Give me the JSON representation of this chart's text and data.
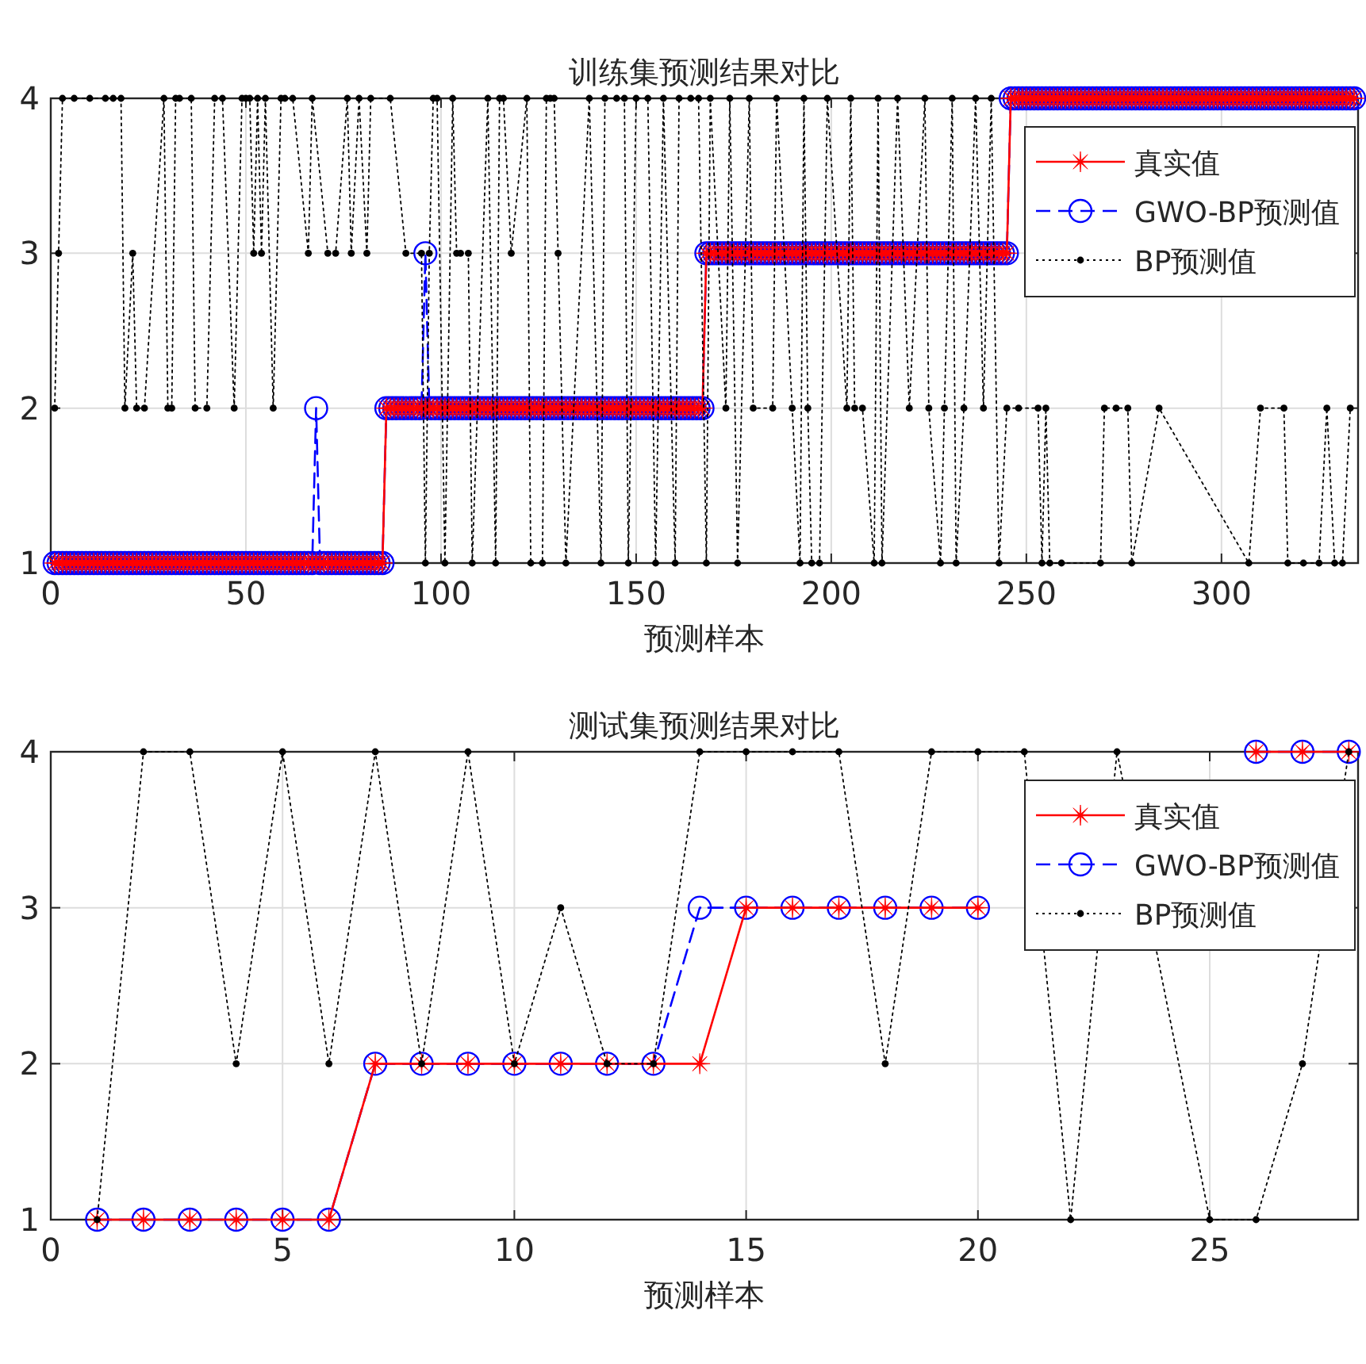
{
  "chart_data": [
    {
      "type": "line",
      "title": "训练集预测结果对比",
      "xlabel": "预测样本",
      "xlim": [
        0,
        335
      ],
      "xticks": [
        0,
        50,
        100,
        150,
        200,
        250,
        300
      ],
      "ylim": [
        1,
        4
      ],
      "yticks": [
        1,
        2,
        3,
        4
      ],
      "grid": true,
      "legend": "top right",
      "x": [
        1,
        2,
        3,
        4,
        5,
        6,
        7,
        8,
        9,
        10,
        11,
        12,
        13,
        14,
        15,
        16,
        17,
        18,
        19,
        20,
        21,
        22,
        23,
        24,
        25,
        26,
        27,
        28,
        29,
        30,
        31,
        32,
        33,
        34,
        35,
        36,
        37,
        38,
        39,
        40,
        41,
        42,
        43,
        44,
        45,
        46,
        47,
        48,
        49,
        50,
        51,
        52,
        53,
        54,
        55,
        56,
        57,
        58,
        59,
        60,
        61,
        62,
        63,
        64,
        65,
        66,
        67,
        68,
        69,
        70,
        71,
        72,
        73,
        74,
        75,
        76,
        77,
        78,
        79,
        80,
        81,
        82,
        83,
        84,
        85,
        86,
        87,
        88,
        89,
        90,
        91,
        92,
        93,
        94,
        95,
        96,
        97,
        98,
        99,
        100,
        101,
        102,
        103,
        104,
        105,
        106,
        107,
        108,
        109,
        110,
        111,
        112,
        113,
        114,
        115,
        116,
        117,
        118,
        119,
        120,
        121,
        122,
        123,
        124,
        125,
        126,
        127,
        128,
        129,
        130,
        131,
        132,
        133,
        134,
        135,
        136,
        137,
        138,
        139,
        140,
        141,
        142,
        143,
        144,
        145,
        146,
        147,
        148,
        149,
        150,
        151,
        152,
        153,
        154,
        155,
        156,
        157,
        158,
        159,
        160,
        161,
        162,
        163,
        164,
        165,
        166,
        167,
        168,
        169,
        170,
        171,
        172,
        173,
        174,
        175,
        176,
        177,
        178,
        179,
        180,
        181,
        182,
        183,
        184,
        185,
        186,
        187,
        188,
        189,
        190,
        191,
        192,
        193,
        194,
        195,
        196,
        197,
        198,
        199,
        200,
        201,
        202,
        203,
        204,
        205,
        206,
        207,
        208,
        209,
        210,
        211,
        212,
        213,
        214,
        215,
        216,
        217,
        218,
        219,
        220,
        221,
        222,
        223,
        224,
        225,
        226,
        227,
        228,
        229,
        230,
        231,
        232,
        233,
        234,
        235,
        236,
        237,
        238,
        239,
        240,
        241,
        242,
        243,
        244,
        245,
        246,
        247,
        248,
        249,
        250,
        251,
        252,
        253,
        254,
        255,
        256,
        257,
        258,
        259,
        260,
        261,
        262,
        263,
        264,
        265,
        266,
        267,
        268,
        269,
        270,
        271,
        272,
        273,
        274,
        275,
        276,
        277,
        278,
        279,
        280,
        281,
        282,
        283,
        284,
        285,
        286,
        287,
        288,
        289,
        290,
        291,
        292,
        293,
        294,
        295,
        296,
        297,
        298,
        299,
        300,
        301,
        302,
        303,
        304,
        305,
        306,
        307,
        308,
        309,
        310,
        311,
        312,
        313,
        314,
        315,
        316,
        317,
        318,
        319,
        320,
        321,
        322,
        323,
        324,
        325,
        326,
        327,
        328,
        329,
        330,
        331,
        332,
        333,
        334
      ],
      "series": [
        {
          "name": "真实值",
          "color": "#ff0000",
          "marker": "star",
          "line_style": "solid",
          "values": [
            1,
            1,
            1,
            1,
            1,
            1,
            1,
            1,
            1,
            1,
            1,
            1,
            1,
            1,
            1,
            1,
            1,
            1,
            1,
            1,
            1,
            1,
            1,
            1,
            1,
            1,
            1,
            1,
            1,
            1,
            1,
            1,
            1,
            1,
            1,
            1,
            1,
            1,
            1,
            1,
            1,
            1,
            1,
            1,
            1,
            1,
            1,
            1,
            1,
            1,
            1,
            1,
            1,
            1,
            1,
            1,
            1,
            1,
            1,
            1,
            1,
            1,
            1,
            1,
            1,
            1,
            1,
            1,
            1,
            1,
            1,
            1,
            1,
            1,
            1,
            1,
            1,
            1,
            1,
            1,
            1,
            1,
            1,
            1,
            1,
            2,
            2,
            2,
            2,
            2,
            2,
            2,
            2,
            2,
            2,
            2,
            2,
            2,
            2,
            2,
            2,
            2,
            2,
            2,
            2,
            2,
            2,
            2,
            2,
            2,
            2,
            2,
            2,
            2,
            2,
            2,
            2,
            2,
            2,
            2,
            2,
            2,
            2,
            2,
            2,
            2,
            2,
            2,
            2,
            2,
            2,
            2,
            2,
            2,
            2,
            2,
            2,
            2,
            2,
            2,
            2,
            2,
            2,
            2,
            2,
            2,
            2,
            2,
            2,
            2,
            2,
            2,
            2,
            2,
            2,
            2,
            2,
            2,
            2,
            2,
            2,
            2,
            2,
            2,
            2,
            2,
            2,
            3,
            3,
            3,
            3,
            3,
            3,
            3,
            3,
            3,
            3,
            3,
            3,
            3,
            3,
            3,
            3,
            3,
            3,
            3,
            3,
            3,
            3,
            3,
            3,
            3,
            3,
            3,
            3,
            3,
            3,
            3,
            3,
            3,
            3,
            3,
            3,
            3,
            3,
            3,
            3,
            3,
            3,
            3,
            3,
            3,
            3,
            3,
            3,
            3,
            3,
            3,
            3,
            3,
            3,
            3,
            3,
            3,
            3,
            3,
            3,
            3,
            3,
            3,
            3,
            3,
            3,
            3,
            3,
            3,
            3,
            3,
            3,
            3,
            3,
            3,
            3,
            3,
            3,
            4,
            4,
            4,
            4,
            4,
            4,
            4,
            4,
            4,
            4,
            4,
            4,
            4,
            4,
            4,
            4,
            4,
            4,
            4,
            4,
            4,
            4,
            4,
            4,
            4,
            4,
            4,
            4,
            4,
            4,
            4,
            4,
            4,
            4,
            4,
            4,
            4,
            4,
            4,
            4,
            4,
            4,
            4,
            4,
            4,
            4,
            4,
            4,
            4,
            4,
            4,
            4,
            4,
            4,
            4,
            4,
            4,
            4,
            4,
            4,
            4,
            4,
            4,
            4,
            4,
            4,
            4,
            4,
            4,
            4,
            4,
            4,
            4,
            4,
            4,
            4,
            4,
            4,
            4,
            4,
            4,
            4,
            4,
            4,
            4,
            4,
            4,
            4,
            4
          ]
        },
        {
          "name": "GWO-BP预测值",
          "color": "#0000ff",
          "marker": "circle",
          "line_style": "dashed",
          "values": [
            1,
            1,
            1,
            1,
            1,
            1,
            1,
            1,
            1,
            1,
            1,
            1,
            1,
            1,
            1,
            1,
            1,
            1,
            1,
            1,
            1,
            1,
            1,
            1,
            1,
            1,
            1,
            1,
            1,
            1,
            1,
            1,
            1,
            1,
            1,
            1,
            1,
            1,
            1,
            1,
            1,
            1,
            1,
            1,
            1,
            1,
            1,
            1,
            1,
            1,
            1,
            1,
            1,
            1,
            1,
            1,
            1,
            1,
            1,
            1,
            1,
            1,
            1,
            1,
            1,
            1,
            1,
            2,
            1,
            1,
            1,
            1,
            1,
            1,
            1,
            1,
            1,
            1,
            1,
            1,
            1,
            1,
            1,
            1,
            1,
            2,
            2,
            2,
            2,
            2,
            2,
            2,
            2,
            2,
            2,
            3,
            2,
            2,
            2,
            2,
            2,
            2,
            2,
            2,
            2,
            2,
            2,
            2,
            2,
            2,
            2,
            2,
            2,
            2,
            2,
            2,
            2,
            2,
            2,
            2,
            2,
            2,
            2,
            2,
            2,
            2,
            2,
            2,
            2,
            2,
            2,
            2,
            2,
            2,
            2,
            2,
            2,
            2,
            2,
            2,
            2,
            2,
            2,
            2,
            2,
            2,
            2,
            2,
            2,
            2,
            2,
            2,
            2,
            2,
            2,
            2,
            2,
            2,
            2,
            2,
            2,
            2,
            2,
            2,
            2,
            2,
            2,
            3,
            3,
            3,
            3,
            3,
            3,
            3,
            3,
            3,
            3,
            3,
            3,
            3,
            3,
            3,
            3,
            3,
            3,
            3,
            3,
            3,
            3,
            3,
            3,
            3,
            3,
            3,
            3,
            3,
            3,
            3,
            3,
            3,
            3,
            3,
            3,
            3,
            3,
            3,
            3,
            3,
            3,
            3,
            3,
            3,
            3,
            3,
            3,
            3,
            3,
            3,
            3,
            3,
            3,
            3,
            3,
            3,
            3,
            3,
            3,
            3,
            3,
            3,
            3,
            3,
            3,
            3,
            3,
            3,
            3,
            3,
            3,
            3,
            3,
            3,
            3,
            3,
            3,
            4,
            4,
            4,
            4,
            4,
            4,
            4,
            4,
            4,
            4,
            4,
            4,
            4,
            4,
            4,
            4,
            4,
            4,
            4,
            4,
            4,
            4,
            4,
            4,
            4,
            4,
            4,
            4,
            4,
            4,
            4,
            4,
            4,
            4,
            4,
            4,
            4,
            4,
            4,
            4,
            4,
            4,
            4,
            4,
            4,
            4,
            4,
            4,
            4,
            4,
            4,
            4,
            4,
            4,
            4,
            4,
            4,
            4,
            4,
            4,
            4,
            4,
            4,
            4,
            4,
            4,
            4,
            4,
            4,
            4,
            4,
            4,
            4,
            4,
            4,
            4,
            4,
            4,
            4,
            4,
            4,
            4,
            4,
            4,
            4,
            4,
            4,
            4,
            4
          ]
        },
        {
          "name": "BP预测值",
          "color": "#000000",
          "marker": "circle",
          "line_style": "dotted",
          "x": [
            1,
            2,
            3,
            6,
            10,
            14,
            16,
            18,
            19,
            21,
            22,
            24,
            29,
            30,
            31,
            32,
            33,
            36,
            37,
            40,
            42,
            44,
            47,
            49,
            50,
            51,
            52,
            53,
            54,
            55,
            57,
            59,
            60,
            62,
            66,
            67,
            71,
            73,
            76,
            77,
            79,
            81,
            82,
            87,
            91,
            95,
            96,
            97,
            98,
            99,
            101,
            103,
            104,
            105,
            107,
            108,
            112,
            114,
            115,
            116,
            118,
            122,
            123,
            126,
            127,
            128,
            129,
            130,
            132,
            138,
            141,
            142,
            145,
            147,
            148,
            150,
            153,
            155,
            157,
            160,
            161,
            164,
            166,
            168,
            169,
            173,
            174,
            176,
            179,
            180,
            185,
            186,
            190,
            192,
            193,
            194,
            195,
            197,
            199,
            204,
            205,
            206,
            208,
            211,
            212,
            213,
            217,
            220,
            224,
            225,
            228,
            229,
            231,
            232,
            234,
            237,
            239,
            241,
            243,
            245,
            248,
            253,
            254,
            255,
            256,
            259,
            269,
            270,
            273,
            276,
            277,
            284,
            307,
            310,
            316,
            317,
            321,
            325,
            327,
            329,
            331,
            333
          ],
          "values": [
            2,
            3,
            4,
            4,
            4,
            4,
            4,
            4,
            2,
            3,
            2,
            2,
            4,
            2,
            2,
            4,
            4,
            4,
            2,
            2,
            4,
            4,
            2,
            4,
            4,
            4,
            3,
            4,
            3,
            4,
            2,
            4,
            4,
            4,
            3,
            4,
            3,
            3,
            4,
            3,
            4,
            3,
            4,
            4,
            3,
            3,
            1,
            3,
            4,
            4,
            1,
            4,
            3,
            3,
            3,
            1,
            4,
            1,
            4,
            4,
            3,
            4,
            1,
            1,
            4,
            4,
            4,
            3,
            1,
            4,
            1,
            4,
            4,
            4,
            1,
            4,
            4,
            1,
            4,
            1,
            4,
            4,
            4,
            1,
            4,
            2,
            4,
            1,
            4,
            2,
            2,
            4,
            2,
            1,
            4,
            2,
            1,
            1,
            4,
            2,
            4,
            2,
            2,
            1,
            4,
            1,
            4,
            2,
            4,
            2,
            1,
            2,
            4,
            1,
            2,
            4,
            2,
            4,
            1,
            2,
            2,
            2,
            1,
            2,
            1,
            1,
            1,
            2,
            2,
            2,
            1,
            2,
            1,
            2,
            2,
            1,
            1,
            1,
            2,
            1,
            1,
            2
          ]
        }
      ]
    },
    {
      "type": "line",
      "title": "测试集预测结果对比",
      "xlabel": "预测样本",
      "xlim": [
        0,
        28.2
      ],
      "xticks": [
        0,
        5,
        10,
        15,
        20,
        25
      ],
      "ylim": [
        1,
        4
      ],
      "yticks": [
        1,
        2,
        3,
        4
      ],
      "grid": true,
      "legend": "top right",
      "x": [
        1,
        2,
        3,
        4,
        5,
        6,
        7,
        8,
        9,
        10,
        11,
        12,
        13,
        14,
        15,
        16,
        17,
        18,
        19,
        20,
        21,
        22,
        23,
        25,
        26,
        27,
        28
      ],
      "series": [
        {
          "name": "真实值",
          "color": "#ff0000",
          "marker": "star",
          "line_style": "solid",
          "values": [
            1,
            1,
            1,
            1,
            1,
            1,
            2,
            2,
            2,
            2,
            2,
            2,
            2,
            2,
            3,
            3,
            3,
            3,
            3,
            3,
            null,
            null,
            null,
            null,
            4,
            4,
            4
          ]
        },
        {
          "name": "GWO-BP预测值",
          "color": "#0000ff",
          "marker": "circle",
          "line_style": "dashed",
          "values": [
            1,
            1,
            1,
            1,
            1,
            1,
            2,
            2,
            2,
            2,
            2,
            2,
            2,
            3,
            3,
            3,
            3,
            3,
            3,
            3,
            null,
            null,
            null,
            null,
            4,
            4,
            4
          ]
        },
        {
          "name": "BP预测值",
          "color": "#000000",
          "marker": "circle",
          "line_style": "dotted",
          "values": [
            1,
            4,
            4,
            2,
            4,
            2,
            4,
            2,
            4,
            2,
            3,
            2,
            2,
            4,
            4,
            4,
            4,
            2,
            4,
            4,
            4,
            1,
            4,
            1,
            1,
            2,
            4
          ]
        }
      ]
    }
  ]
}
